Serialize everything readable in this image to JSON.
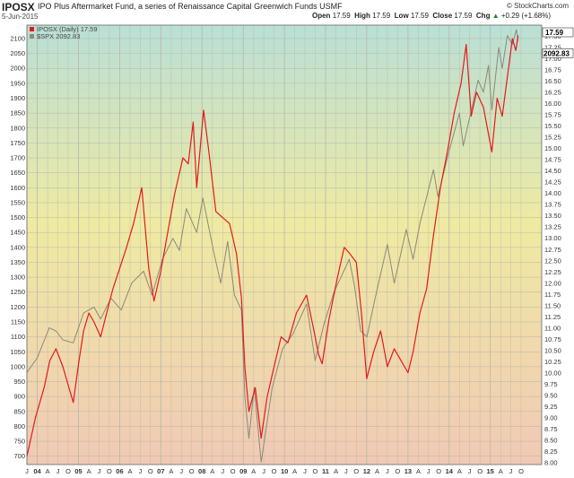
{
  "header": {
    "symbol": "IPOSX",
    "fund_name": "IPO Plus Aftermarket Fund, a series of Renaissance Capital Greenwich Funds  USMF",
    "date": "5-Jun-2015",
    "credit": "© StockCharts.com",
    "open_label": "Open",
    "open_value": "17.59",
    "high_label": "High",
    "high_value": "17.59",
    "low_label": "Low",
    "low_value": "17.59",
    "close_label": "Close",
    "close_value": "17.59",
    "chg_label": "Chg",
    "chg_value": "+0.29 (+1.68%)",
    "chg_arrow": "▲"
  },
  "colors": {
    "iposx": "#e31a1c",
    "spx": "#8a8a7a",
    "bg_top": "#b9dfd6",
    "bg_mid": "#efeaa2",
    "bg_bottom": "#f0c9b5",
    "up": "#1a8a1a"
  },
  "chart_data": {
    "type": "line",
    "legend": [
      {
        "text": "IPOSX (Daily) 17.59",
        "color": "#e31a1c"
      },
      {
        "text": "$SPX 2092.83",
        "color": "#8a8a7a"
      }
    ],
    "last_labels": {
      "iposx": "17.59",
      "spx": "2092.83"
    },
    "x_tick_labels": [
      "J",
      "04",
      "A",
      "J",
      "O",
      "05",
      "A",
      "J",
      "O",
      "06",
      "A",
      "J",
      "O",
      "07",
      "A",
      "J",
      "O",
      "08",
      "A",
      "J",
      "O",
      "09",
      "A",
      "J",
      "O",
      "10",
      "A",
      "J",
      "O",
      "11",
      "A",
      "J",
      "O",
      "12",
      "A",
      "J",
      "O",
      "13",
      "A",
      "J",
      "O",
      "14",
      "A",
      "J",
      "O",
      "15",
      "A",
      "J",
      "O"
    ],
    "left_axis": {
      "ticks": [
        700,
        750,
        800,
        850,
        900,
        950,
        1000,
        1050,
        1100,
        1150,
        1200,
        1250,
        1300,
        1350,
        1400,
        1450,
        1500,
        1550,
        1600,
        1650,
        1700,
        1750,
        1800,
        1850,
        1900,
        1950,
        2000,
        2050,
        2100
      ],
      "range": [
        672,
        2145
      ]
    },
    "right_axis": {
      "ticks": [
        "8.00",
        "8.25",
        "8.50",
        "8.75",
        "9.00",
        "9.25",
        "9.50",
        "9.75",
        "10.00",
        "10.25",
        "10.50",
        "10.75",
        "11.00",
        "11.25",
        "11.50",
        "11.75",
        "12.00",
        "12.25",
        "12.50",
        "12.75",
        "13.00",
        "13.25",
        "13.50",
        "13.75",
        "14.00",
        "14.25",
        "14.50",
        "14.75",
        "15.00",
        "15.25",
        "15.50",
        "15.75",
        "16.00",
        "16.25",
        "16.50",
        "16.75",
        "17.00",
        "17.25",
        "17.50"
      ],
      "range": [
        7.96,
        17.75
      ]
    },
    "x_range": [
      "2003-07-01",
      "2015-12-31"
    ],
    "series": [
      {
        "name": "IPOSX (Daily) 17.59",
        "axis": "left",
        "values": [
          [
            "2003-07-01",
            700
          ],
          [
            "2003-09-15",
            830
          ],
          [
            "2003-12-01",
            930
          ],
          [
            "2004-01-20",
            1020
          ],
          [
            "2004-03-15",
            1060
          ],
          [
            "2004-05-15",
            1000
          ],
          [
            "2004-07-15",
            920
          ],
          [
            "2004-08-15",
            880
          ],
          [
            "2004-10-01",
            1010
          ],
          [
            "2004-11-15",
            1120
          ],
          [
            "2005-01-01",
            1180
          ],
          [
            "2005-02-15",
            1150
          ],
          [
            "2005-04-15",
            1100
          ],
          [
            "2005-06-01",
            1170
          ],
          [
            "2005-08-01",
            1260
          ],
          [
            "2005-10-01",
            1330
          ],
          [
            "2005-12-01",
            1400
          ],
          [
            "2006-02-01",
            1480
          ],
          [
            "2006-04-15",
            1600
          ],
          [
            "2006-06-15",
            1330
          ],
          [
            "2006-08-01",
            1220
          ],
          [
            "2006-10-01",
            1320
          ],
          [
            "2006-12-01",
            1450
          ],
          [
            "2007-02-01",
            1580
          ],
          [
            "2007-04-15",
            1700
          ],
          [
            "2007-06-01",
            1680
          ],
          [
            "2007-07-15",
            1820
          ],
          [
            "2007-08-15",
            1600
          ],
          [
            "2007-10-15",
            1860
          ],
          [
            "2007-12-01",
            1720
          ],
          [
            "2008-02-01",
            1520
          ],
          [
            "2008-04-01",
            1500
          ],
          [
            "2008-06-01",
            1480
          ],
          [
            "2008-08-01",
            1380
          ],
          [
            "2008-09-15",
            1230
          ],
          [
            "2008-10-15",
            1000
          ],
          [
            "2008-11-20",
            850
          ],
          [
            "2009-01-15",
            930
          ],
          [
            "2009-03-09",
            760
          ],
          [
            "2009-05-01",
            900
          ],
          [
            "2009-07-01",
            1000
          ],
          [
            "2009-09-01",
            1100
          ],
          [
            "2009-11-01",
            1080
          ],
          [
            "2010-01-15",
            1180
          ],
          [
            "2010-04-15",
            1240
          ],
          [
            "2010-06-15",
            1130
          ],
          [
            "2010-08-01",
            1040
          ],
          [
            "2010-09-01",
            1010
          ],
          [
            "2010-11-01",
            1160
          ],
          [
            "2011-01-15",
            1300
          ],
          [
            "2011-03-15",
            1400
          ],
          [
            "2011-05-01",
            1380
          ],
          [
            "2011-07-01",
            1350
          ],
          [
            "2011-08-15",
            1180
          ],
          [
            "2011-10-01",
            960
          ],
          [
            "2011-12-01",
            1050
          ],
          [
            "2012-02-01",
            1120
          ],
          [
            "2012-04-01",
            1000
          ],
          [
            "2012-06-01",
            1060
          ],
          [
            "2012-08-01",
            1020
          ],
          [
            "2012-10-01",
            980
          ],
          [
            "2012-11-15",
            1050
          ],
          [
            "2013-01-15",
            1180
          ],
          [
            "2013-03-15",
            1260
          ],
          [
            "2013-05-15",
            1440
          ],
          [
            "2013-07-15",
            1600
          ],
          [
            "2013-09-15",
            1720
          ],
          [
            "2013-11-15",
            1850
          ],
          [
            "2014-01-15",
            1950
          ],
          [
            "2014-03-01",
            2080
          ],
          [
            "2014-04-15",
            1840
          ],
          [
            "2014-06-01",
            1920
          ],
          [
            "2014-08-01",
            1870
          ],
          [
            "2014-10-15",
            1720
          ],
          [
            "2014-12-01",
            1900
          ],
          [
            "2015-01-15",
            1840
          ],
          [
            "2015-03-15",
            2010
          ],
          [
            "2015-04-15",
            2100
          ],
          [
            "2015-05-15",
            2060
          ],
          [
            "2015-06-05",
            2110
          ]
        ]
      },
      {
        "name": "$SPX 2092.83",
        "axis": "left",
        "values": [
          [
            "2003-07-01",
            980
          ],
          [
            "2003-10-01",
            1030
          ],
          [
            "2004-01-15",
            1130
          ],
          [
            "2004-03-15",
            1120
          ],
          [
            "2004-05-15",
            1090
          ],
          [
            "2004-08-15",
            1080
          ],
          [
            "2004-11-15",
            1180
          ],
          [
            "2005-02-15",
            1200
          ],
          [
            "2005-04-15",
            1160
          ],
          [
            "2005-07-15",
            1230
          ],
          [
            "2005-10-15",
            1190
          ],
          [
            "2006-01-15",
            1280
          ],
          [
            "2006-05-01",
            1320
          ],
          [
            "2006-07-15",
            1240
          ],
          [
            "2006-10-15",
            1360
          ],
          [
            "2007-01-15",
            1430
          ],
          [
            "2007-03-15",
            1390
          ],
          [
            "2007-05-15",
            1530
          ],
          [
            "2007-08-15",
            1450
          ],
          [
            "2007-10-09",
            1565
          ],
          [
            "2008-01-15",
            1380
          ],
          [
            "2008-03-15",
            1280
          ],
          [
            "2008-05-15",
            1420
          ],
          [
            "2008-07-15",
            1240
          ],
          [
            "2008-09-15",
            1190
          ],
          [
            "2008-10-15",
            900
          ],
          [
            "2008-11-20",
            760
          ],
          [
            "2009-01-06",
            930
          ],
          [
            "2009-03-09",
            680
          ],
          [
            "2009-06-15",
            930
          ],
          [
            "2009-09-15",
            1060
          ],
          [
            "2009-12-15",
            1110
          ],
          [
            "2010-04-15",
            1210
          ],
          [
            "2010-07-01",
            1020
          ],
          [
            "2010-09-15",
            1140
          ],
          [
            "2010-12-15",
            1250
          ],
          [
            "2011-04-29",
            1360
          ],
          [
            "2011-06-15",
            1270
          ],
          [
            "2011-08-08",
            1120
          ],
          [
            "2011-10-03",
            1100
          ],
          [
            "2011-12-15",
            1230
          ],
          [
            "2012-04-01",
            1410
          ],
          [
            "2012-06-01",
            1280
          ],
          [
            "2012-09-15",
            1460
          ],
          [
            "2012-11-15",
            1360
          ],
          [
            "2013-01-15",
            1480
          ],
          [
            "2013-05-15",
            1660
          ],
          [
            "2013-06-24",
            1570
          ],
          [
            "2013-09-15",
            1700
          ],
          [
            "2013-12-31",
            1850
          ],
          [
            "2014-02-03",
            1740
          ],
          [
            "2014-06-15",
            1960
          ],
          [
            "2014-08-01",
            1920
          ],
          [
            "2014-09-15",
            2010
          ],
          [
            "2014-10-15",
            1860
          ],
          [
            "2014-12-15",
            2070
          ],
          [
            "2015-01-15",
            2000
          ],
          [
            "2015-03-01",
            2110
          ],
          [
            "2015-04-15",
            2080
          ],
          [
            "2015-05-20",
            2130
          ],
          [
            "2015-06-05",
            2092.83
          ]
        ]
      }
    ],
    "grid": true
  }
}
